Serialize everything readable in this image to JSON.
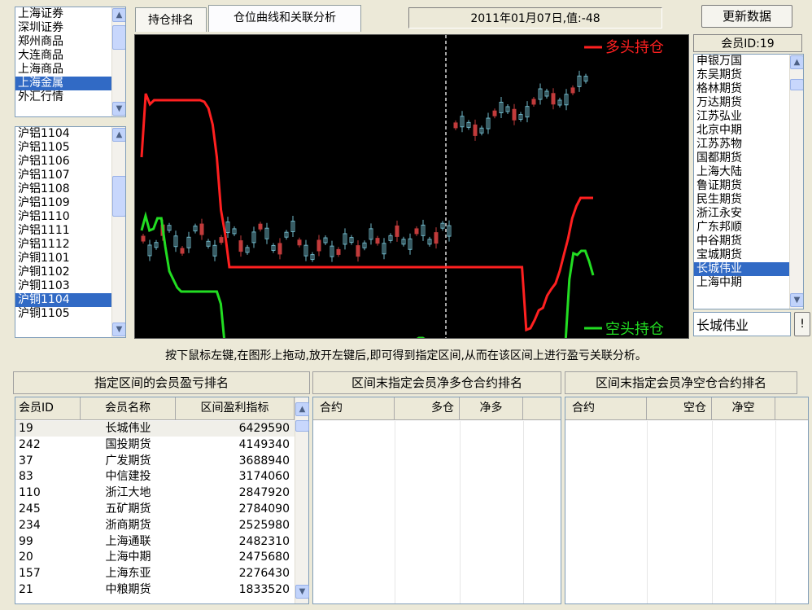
{
  "market_list": {
    "items": [
      "上海证券",
      "深圳证券",
      "郑州商品",
      "大连商品",
      "上海商品",
      "上海金属",
      "外汇行情"
    ],
    "selected_index": 5
  },
  "contract_list": {
    "items": [
      "沪铝1104",
      "沪铝1105",
      "沪铝1106",
      "沪铝1107",
      "沪铝1108",
      "沪铝1109",
      "沪铝1110",
      "沪铝1111",
      "沪铝1112",
      "沪铜1101",
      "沪铜1102",
      "沪铜1103",
      "沪铜1104",
      "沪铜1105"
    ],
    "selected_index": 12
  },
  "tabs": {
    "position_rank": "持仓排名",
    "curve_analysis": "仓位曲线和关联分析"
  },
  "status_box": "2011年01月07日,值:-48",
  "refresh_button": "更新数据",
  "member_id_label": "会员ID:19",
  "member_list": {
    "items": [
      "申银万国",
      "东吴期货",
      "格林期货",
      "万达期货",
      "江苏弘业",
      "北京中期",
      "江苏苏物",
      "国都期货",
      "上海大陆",
      "鲁证期货",
      "民生期货",
      "浙江永安",
      "广东邦顺",
      "中谷期货",
      "宝城期货",
      "长城伟业",
      "上海中期"
    ],
    "selected_index": 15
  },
  "member_input_value": "长城伟业",
  "member_input_button": "!",
  "chart": {
    "legend_long": "多头持仓",
    "legend_short": "空头持仓",
    "colors": {
      "long": "#ff2020",
      "short": "#22dd22",
      "bg": "#000000"
    },
    "chart_data": {
      "type": "line",
      "series": [
        {
          "name": "多头持仓",
          "values": [
            150,
            72,
            85,
            80,
            80,
            80,
            80,
            80,
            80,
            80,
            80,
            80,
            80,
            80,
            80,
            82,
            90,
            110,
            150,
            215,
            245,
            285,
            285,
            285,
            285,
            285,
            285,
            285,
            285,
            285,
            285,
            285,
            285,
            285,
            285,
            285,
            285,
            285,
            285,
            285,
            285,
            285,
            285,
            285,
            285,
            285,
            285,
            285,
            285,
            285,
            285,
            285,
            285,
            285,
            285,
            285,
            285,
            285,
            285,
            285,
            285,
            285,
            285,
            285,
            285,
            285,
            285,
            285,
            285,
            285,
            285,
            285,
            285,
            285,
            285,
            285,
            285,
            285,
            285,
            285,
            285,
            285,
            285,
            285,
            285,
            285,
            285,
            285,
            285,
            285,
            285,
            285,
            362,
            360,
            350,
            338,
            335,
            320,
            312,
            305,
            290,
            270,
            250,
            225,
            210,
            200,
            200,
            200,
            200
          ]
        },
        {
          "name": "空头持仓",
          "values": [
            240,
            222,
            240,
            238,
            225,
            225,
            260,
            290,
            300,
            310,
            315,
            315,
            315,
            315,
            315,
            315,
            315,
            315,
            315,
            315,
            330,
            380,
            380,
            378,
            378,
            378,
            378,
            378,
            378,
            378,
            378,
            378,
            378,
            378,
            378,
            378,
            378,
            378,
            378,
            378,
            378,
            378,
            378,
            378,
            378,
            378,
            378,
            378,
            378,
            378,
            378,
            378,
            378,
            378,
            378,
            378,
            378,
            378,
            378,
            378,
            378,
            378,
            378,
            378,
            378,
            378,
            378,
            378,
            378,
            375,
            372,
            372,
            375,
            380,
            380,
            380,
            380,
            380,
            380,
            380,
            380,
            380,
            380,
            380,
            380,
            380,
            380,
            380,
            380,
            380,
            380,
            380,
            380,
            382,
            382,
            382,
            382,
            382,
            382,
            382,
            382,
            382,
            382,
            382,
            382,
            382,
            382,
            380,
            300,
            268,
            270,
            265,
            265,
            278,
            295
          ]
        }
      ]
    }
  },
  "hint_text": "按下鼠标左键,在图形上拖动,放开左键后,即可得到指定区间,从而在该区间上进行盈亏关联分析。",
  "section_titles": {
    "profit_rank": "指定区间的会员盈亏排名",
    "net_long_rank": "区间末指定会员净多仓合约排名",
    "net_short_rank": "区间末指定会员净空仓合约排名"
  },
  "profit_table": {
    "headers": [
      "会员ID",
      "会员名称",
      "区间盈利指标"
    ],
    "rows": [
      [
        "19",
        "长城伟业",
        "6429590"
      ],
      [
        "242",
        "国投期货",
        "4149340"
      ],
      [
        "37",
        "广发期货",
        "3688940"
      ],
      [
        "83",
        "中信建投",
        "3174060"
      ],
      [
        "110",
        "浙江大地",
        "2847920"
      ],
      [
        "245",
        "五矿期货",
        "2784090"
      ],
      [
        "234",
        "浙商期货",
        "2525980"
      ],
      [
        "99",
        "上海通联",
        "2482310"
      ],
      [
        "20",
        "上海中期",
        "2475680"
      ],
      [
        "157",
        "上海东亚",
        "2276430"
      ],
      [
        "21",
        "中粮期货",
        "1833520"
      ]
    ]
  },
  "net_long_table": {
    "headers": [
      "合约",
      "多仓",
      "净多"
    ]
  },
  "net_short_table": {
    "headers": [
      "合约",
      "空仓",
      "净空"
    ]
  }
}
